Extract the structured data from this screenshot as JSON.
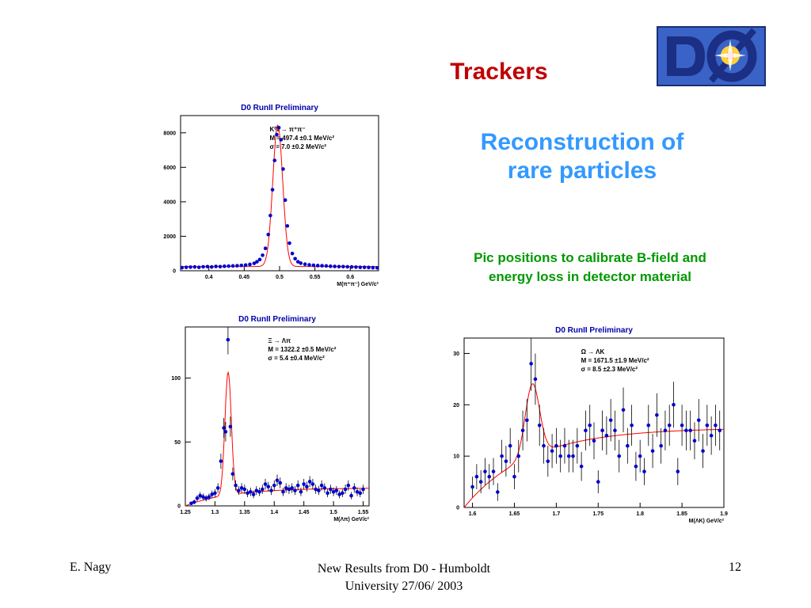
{
  "slide": {
    "title": "Trackers",
    "subtitle_line1": "Reconstruction of",
    "subtitle_line2": "rare particles",
    "note_line1": "Pic positions to calibrate B-field and",
    "note_line2": "energy loss in detector material",
    "logo_text": "DØ",
    "colors": {
      "title": "#c00000",
      "subtitle": "#3399ff",
      "note": "#009900",
      "points": "#0000cc",
      "fit": "#ff0000"
    }
  },
  "footer": {
    "left": "E. Nagy",
    "center_line1": "New Results from D0 - Humboldt",
    "center_line2": "University  27/06/ 2003",
    "right": "12"
  },
  "chart_data": [
    {
      "type": "scatter",
      "title": "D0 RunII Preliminary",
      "xlabel": "M(π⁺π⁻) GeV/c²",
      "ylabel": "",
      "xlim": [
        0.36,
        0.64
      ],
      "ylim": [
        0,
        9000
      ],
      "x_ticks": [
        0.4,
        0.45,
        0.5,
        0.55,
        0.6
      ],
      "x_tick_labels": [
        "0.4",
        "0.45",
        "0.5",
        "0.55",
        "0.6"
      ],
      "y_ticks": [
        0,
        2000,
        4000,
        6000,
        8000
      ],
      "y_tick_labels": [
        "0",
        "2000",
        "4000",
        "6000",
        "8000"
      ],
      "annotation": [
        "K⁰ₛ → π⁺π⁻",
        "M =  497.4 ±0.1 MeV/c²",
        "σ = 7.0 ±0.2 MeV/c²"
      ],
      "fit": {
        "type": "gauss+const",
        "mean": 0.4974,
        "sigma": 0.007,
        "amplitude": 8200,
        "baseline": 250
      },
      "series": [
        {
          "x": [
            0.362,
            0.368,
            0.374,
            0.38,
            0.386,
            0.392,
            0.398,
            0.404,
            0.41,
            0.416,
            0.422,
            0.428,
            0.434,
            0.44,
            0.446,
            0.452,
            0.458,
            0.464,
            0.468,
            0.472,
            0.476,
            0.48,
            0.484,
            0.487,
            0.49,
            0.493,
            0.496,
            0.499,
            0.502,
            0.505,
            0.508,
            0.511,
            0.514,
            0.518,
            0.522,
            0.526,
            0.53,
            0.536,
            0.542,
            0.548,
            0.554,
            0.56,
            0.566,
            0.572,
            0.578,
            0.584,
            0.59,
            0.596,
            0.602,
            0.608,
            0.614,
            0.62,
            0.626,
            0.632,
            0.638
          ],
          "y": [
            180,
            200,
            210,
            220,
            200,
            230,
            240,
            220,
            250,
            240,
            260,
            270,
            280,
            290,
            310,
            330,
            370,
            430,
            520,
            650,
            900,
            1300,
            2100,
            3200,
            4700,
            6400,
            7900,
            8300,
            7600,
            5900,
            4100,
            2600,
            1600,
            1000,
            700,
            520,
            440,
            380,
            340,
            320,
            300,
            290,
            280,
            260,
            250,
            240,
            240,
            230,
            220,
            210,
            200,
            200,
            190,
            180,
            170
          ]
        }
      ]
    },
    {
      "type": "scatter",
      "title": "D0 RunII Preliminary",
      "xlabel": "M(Λπ) GeV/c²",
      "ylabel": "",
      "xlim": [
        1.25,
        1.56
      ],
      "ylim": [
        0,
        140
      ],
      "x_ticks": [
        1.25,
        1.3,
        1.35,
        1.4,
        1.45,
        1.5,
        1.55
      ],
      "x_tick_labels": [
        "1.25",
        "1.3",
        "1.35",
        "1.4",
        "1.45",
        "1.5",
        "1.55"
      ],
      "y_ticks": [
        0,
        50,
        100
      ],
      "y_tick_labels": [
        "0",
        "50",
        "100"
      ],
      "annotation": [
        "Ξ → Λπ",
        "M = 1322.2 ±0.5 MeV/c²",
        "σ = 5.4 ±0.4 MeV/c²"
      ],
      "fit": {
        "type": "gauss+threshold",
        "mean": 1.3222,
        "sigma": 0.0054,
        "amplitude": 96,
        "baseline": 14
      },
      "series": [
        {
          "x": [
            1.26,
            1.265,
            1.27,
            1.275,
            1.28,
            1.285,
            1.29,
            1.295,
            1.3,
            1.305,
            1.31,
            1.315,
            1.318,
            1.322,
            1.326,
            1.33,
            1.335,
            1.34,
            1.345,
            1.35,
            1.355,
            1.36,
            1.365,
            1.37,
            1.375,
            1.38,
            1.385,
            1.39,
            1.395,
            1.4,
            1.405,
            1.41,
            1.415,
            1.42,
            1.425,
            1.43,
            1.435,
            1.44,
            1.445,
            1.45,
            1.455,
            1.46,
            1.465,
            1.47,
            1.475,
            1.48,
            1.485,
            1.49,
            1.495,
            1.5,
            1.505,
            1.51,
            1.515,
            1.52,
            1.525,
            1.53,
            1.535,
            1.54,
            1.545,
            1.55
          ],
          "y": [
            2,
            3,
            6,
            8,
            7,
            6,
            7,
            9,
            10,
            14,
            35,
            61,
            58,
            130,
            62,
            25,
            16,
            12,
            14,
            13,
            10,
            11,
            9,
            12,
            11,
            13,
            17,
            15,
            12,
            16,
            20,
            18,
            11,
            14,
            13,
            14,
            12,
            16,
            11,
            17,
            15,
            19,
            17,
            13,
            12,
            16,
            14,
            10,
            13,
            11,
            12,
            9,
            10,
            13,
            16,
            8,
            14,
            11,
            10,
            13
          ]
        }
      ]
    },
    {
      "type": "scatter",
      "title": "D0 RunII Preliminary",
      "xlabel": "M(ΛK) GeV/c²",
      "ylabel": "",
      "xlim": [
        1.59,
        1.9
      ],
      "ylim": [
        0,
        33
      ],
      "x_ticks": [
        1.6,
        1.65,
        1.7,
        1.75,
        1.8,
        1.85,
        1.9
      ],
      "x_tick_labels": [
        "1.6",
        "1.65",
        "1.7",
        "1.75",
        "1.8",
        "1.85",
        "1.9"
      ],
      "y_ticks": [
        0,
        10,
        20,
        30
      ],
      "y_tick_labels": [
        "0",
        "10",
        "20",
        "30"
      ],
      "annotation": [
        "Ω → ΛK",
        "M = 1671.5 ±1.9 MeV/c²",
        "σ = 8.5 ±2.3 MeV/c²"
      ],
      "fit": {
        "type": "gauss+threshold",
        "mean": 1.6715,
        "sigma": 0.0085,
        "amplitude": 14,
        "baseline": 15.5
      },
      "series": [
        {
          "x": [
            1.6,
            1.605,
            1.61,
            1.615,
            1.62,
            1.625,
            1.63,
            1.635,
            1.64,
            1.645,
            1.65,
            1.655,
            1.66,
            1.665,
            1.67,
            1.675,
            1.68,
            1.685,
            1.69,
            1.695,
            1.7,
            1.705,
            1.71,
            1.715,
            1.72,
            1.725,
            1.73,
            1.735,
            1.74,
            1.745,
            1.75,
            1.755,
            1.76,
            1.765,
            1.77,
            1.775,
            1.78,
            1.785,
            1.79,
            1.795,
            1.8,
            1.805,
            1.81,
            1.815,
            1.82,
            1.825,
            1.83,
            1.835,
            1.84,
            1.845,
            1.85,
            1.855,
            1.86,
            1.865,
            1.87,
            1.875,
            1.88,
            1.885,
            1.89,
            1.895
          ],
          "y": [
            4,
            6,
            5,
            7,
            6,
            7,
            3,
            10,
            9,
            12,
            6,
            10,
            15,
            17,
            28,
            25,
            16,
            12,
            9,
            11,
            12,
            10,
            12,
            10,
            10,
            12,
            8,
            15,
            16,
            13,
            5,
            15,
            14,
            17,
            15,
            10,
            19,
            12,
            16,
            8,
            10,
            7,
            16,
            11,
            18,
            12,
            15,
            16,
            20,
            7,
            16,
            15,
            15,
            13,
            17,
            11,
            16,
            14,
            16,
            15
          ]
        }
      ]
    }
  ]
}
